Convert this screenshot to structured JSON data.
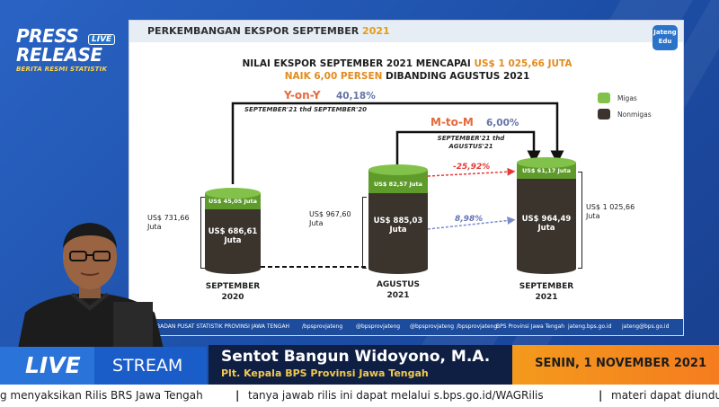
{
  "logo": {
    "line1": "PRESS",
    "live": "LIVE",
    "line2": "RELEASE",
    "line3": "BERITA RESMI STATISTIK"
  },
  "slide": {
    "title_main": "PERKEMBANGAN EKSPOR SEPTEMBER ",
    "title_year": "2021",
    "badge": "Jateng Edu",
    "headline1_pre": "NILAI EKSPOR SEPTEMBER 2021 MENCAPAI ",
    "headline1_hl": "US$ 1 025,66 JUTA",
    "headline2_hl": "NAIK 6,00 PERSEN",
    "headline2_post": " DIBANDING AGUSTUS 2021",
    "yoy_label": "Y-on-Y",
    "yoy_value": "40,18%",
    "yoy_sub": "SEPTEMBER'21 thd SEPTEMBER'20",
    "mtm_label": "M-to-M",
    "mtm_value": "6,00%",
    "mtm_sub": "SEPTEMBER'21 thd AGUSTUS'21",
    "legend": {
      "migas": "Migas",
      "nonmigas": "Nonmigas"
    },
    "bars": [
      {
        "migas": "US$ 45,05 Juta",
        "nonmigas": "US$ 686,61 Juta",
        "total": "US$ 731,66 Juta",
        "cat1": "SEPTEMBER",
        "cat2": "2020"
      },
      {
        "migas": "US$ 82,57 Juta",
        "nonmigas": "US$ 885,03 Juta",
        "total": "US$ 967,60 Juta",
        "cat1": "AGUSTUS",
        "cat2": "2021"
      },
      {
        "migas": "US$ 61,17 Juta",
        "nonmigas": "US$ 964,49 Juta",
        "total": "US$ 1 025,66 Juta",
        "cat1": "SEPTEMBER",
        "cat2": "2021"
      }
    ],
    "pct_migas": "-25,92%",
    "pct_nonmigas": "8,98%",
    "footer": {
      "bps": "BADAN PUSAT STATISTIK PROVINSI JAWA TENGAH",
      "fb": "/bpsprovjateng",
      "ig": "@bpsprovjateng",
      "tw": "@bpsprovjateng",
      "yt": "/bpsprovjateng",
      "bps2": "BPS Provinsi Jawa Tengah",
      "web": "jateng.bps.go.id",
      "mail": "jateng@bps.go.id"
    }
  },
  "lower_third": {
    "live": "LIVE",
    "stream": "STREAM",
    "name": "Sentot Bangun Widoyono, M.A.",
    "title": "Plt. Kepala BPS Provinsi Jawa Tengah",
    "date": "SENIN, 1 NOVEMBER 2021"
  },
  "ticker": {
    "t1": "g menyaksikan Rilis BRS Jawa Tengah",
    "t2": "tanya jawab rilis ini dapat melalui s.bps.go.id/WAGRilis",
    "t3": "materi dapat diunduh di ja"
  }
}
